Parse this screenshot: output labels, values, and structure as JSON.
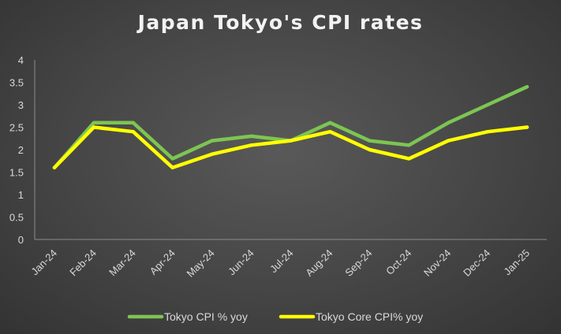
{
  "chart_data": {
    "type": "line",
    "title": "Japan Tokyo's CPI rates",
    "xlabel": "",
    "ylabel": "",
    "categories": [
      "Jan-24",
      "Feb-24",
      "Mar-24",
      "Apr-24",
      "May-24",
      "Jun-24",
      "Jul-24",
      "Aug-24",
      "Sep-24",
      "Oct-24",
      "Nov-24",
      "Dec-24",
      "Jan-25"
    ],
    "ylim": [
      0,
      4
    ],
    "yticks": [
      "0",
      "0.5",
      "1",
      "1.5",
      "2",
      "2.5",
      "3",
      "3.5",
      "4"
    ],
    "grid": false,
    "legend_position": "bottom",
    "series": [
      {
        "name": "Tokyo CPI % yoy",
        "color": "#7dc552",
        "values": [
          1.6,
          2.6,
          2.6,
          1.8,
          2.2,
          2.3,
          2.2,
          2.6,
          2.2,
          2.1,
          2.6,
          3.0,
          3.4
        ]
      },
      {
        "name": "Tokyo Core CPI% yoy",
        "color": "#ffff00",
        "values": [
          1.6,
          2.5,
          2.4,
          1.6,
          1.9,
          2.1,
          2.2,
          2.4,
          2.0,
          1.8,
          2.2,
          2.4,
          2.5
        ]
      }
    ]
  }
}
